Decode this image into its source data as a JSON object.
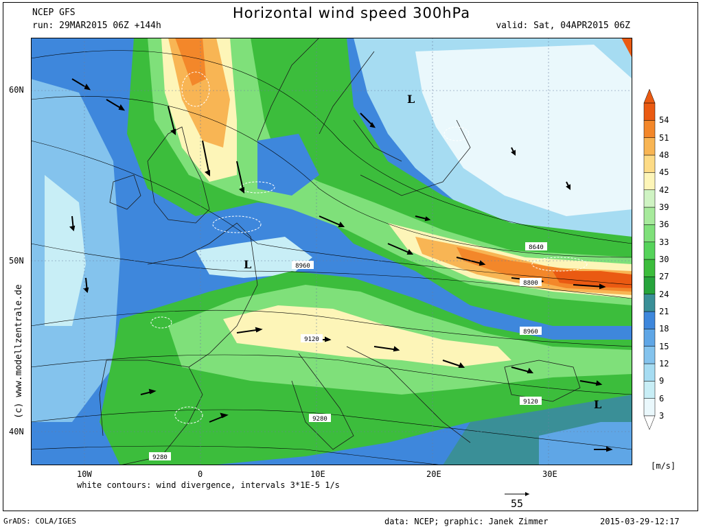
{
  "header": {
    "model": "NCEP GFS",
    "run": "run: 29MAR2015 06Z +144h",
    "title": "Horizontal wind speed 300hPa",
    "valid": "valid: Sat, 04APR2015 06Z"
  },
  "axes": {
    "lon_ticks": [
      "10W",
      "0",
      "10E",
      "20E",
      "30E"
    ],
    "lat_ticks": [
      "60N",
      "50N",
      "40N"
    ]
  },
  "colorbar": {
    "levels": [
      "3",
      "6",
      "9",
      "12",
      "15",
      "18",
      "21",
      "24",
      "27",
      "30",
      "33",
      "36",
      "39",
      "42",
      "45",
      "48",
      "51",
      "54"
    ],
    "colors": [
      "#eaf8fc",
      "#c8eef6",
      "#a6dcf2",
      "#84c3ed",
      "#5fa6e6",
      "#3e87dc",
      "#3a8f97",
      "#27a43c",
      "#3cbd3c",
      "#55d35a",
      "#7fe07a",
      "#a7ea9c",
      "#cff3c3",
      "#fdf5b8",
      "#fddb86",
      "#f8b554",
      "#f3872a",
      "#ea5a12"
    ],
    "unit": "[m/s]"
  },
  "contour_labels": [
    {
      "text": "8640"
    },
    {
      "text": "8800"
    },
    {
      "text": "8960"
    },
    {
      "text": "8960"
    },
    {
      "text": "9120"
    },
    {
      "text": "9120"
    },
    {
      "text": "9280"
    },
    {
      "text": "9280"
    }
  ],
  "lows": [
    "L",
    "L",
    "L"
  ],
  "footer": {
    "divergence_note": "white contours: wind divergence, intervals 3*1E-5 1/s",
    "arrow_ref": "55",
    "credit": "data: NCEP; graphic: Janek Zimmer",
    "timestamp": "2015-03-29-12:17",
    "grads": "GrADS: COLA/IGES",
    "side_url": "(c) www.modellzentrale.de"
  }
}
